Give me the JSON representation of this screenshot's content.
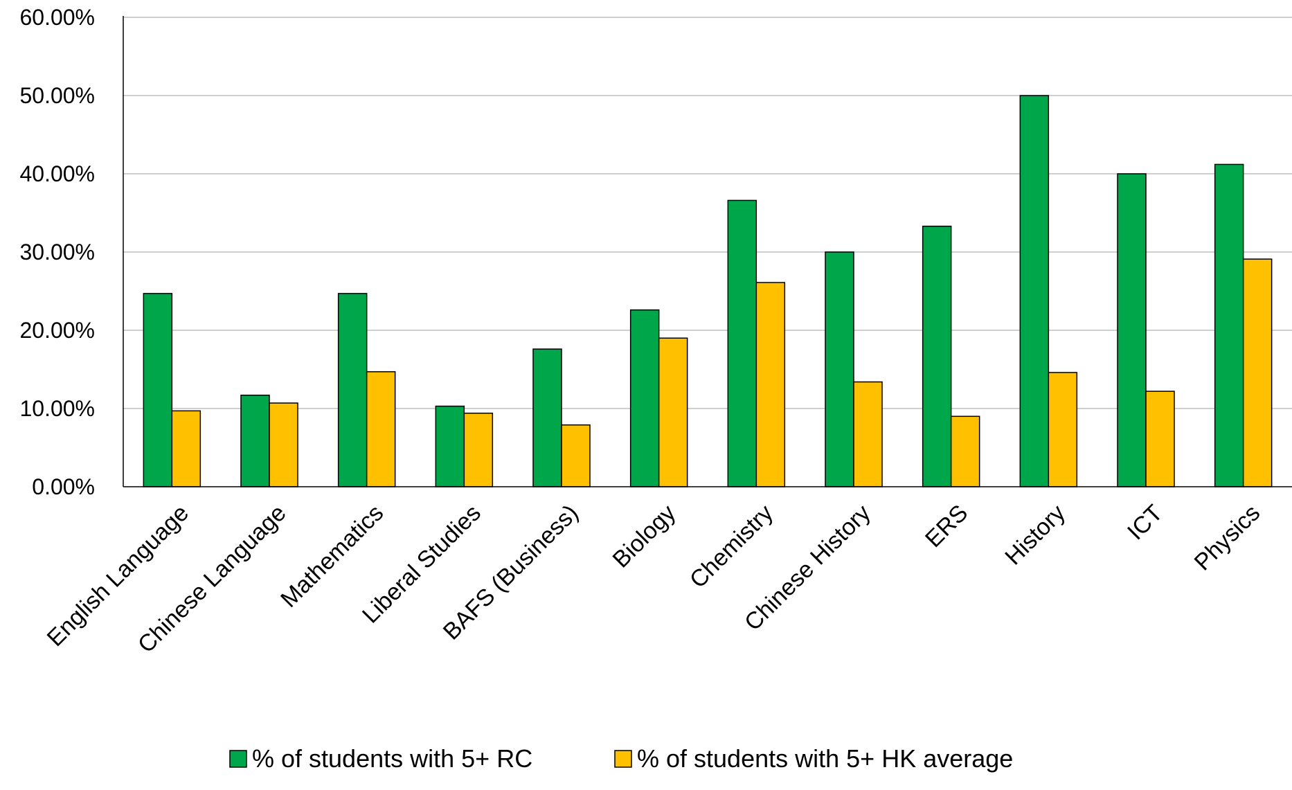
{
  "chart_data": {
    "type": "bar",
    "categories": [
      "English Language",
      "Chinese Language",
      "Mathematics",
      "Liberal Studies",
      "BAFS (Business)",
      "Biology",
      "Chemistry",
      "Chinese History",
      "ERS",
      "History",
      "ICT",
      "Physics"
    ],
    "series": [
      {
        "name": "% of students with 5+ RC",
        "color": "#00A74A",
        "values": [
          24.7,
          11.7,
          24.7,
          10.3,
          17.6,
          22.6,
          36.6,
          30.0,
          33.3,
          50.0,
          40.0,
          41.2
        ]
      },
      {
        "name": "% of students with 5+ HK average",
        "color": "#FFC000",
        "values": [
          9.7,
          10.7,
          14.7,
          9.4,
          7.9,
          19.0,
          26.1,
          13.4,
          9.0,
          14.6,
          12.2,
          29.1
        ]
      }
    ],
    "y_ticks": [
      "0.00%",
      "10.00%",
      "20.00%",
      "30.00%",
      "40.00%",
      "50.00%",
      "60.00%"
    ],
    "ylim": [
      0,
      60
    ],
    "y_unit": "%",
    "grid": true,
    "legend_position": "bottom",
    "title": "",
    "xlabel": "",
    "ylabel": ""
  }
}
